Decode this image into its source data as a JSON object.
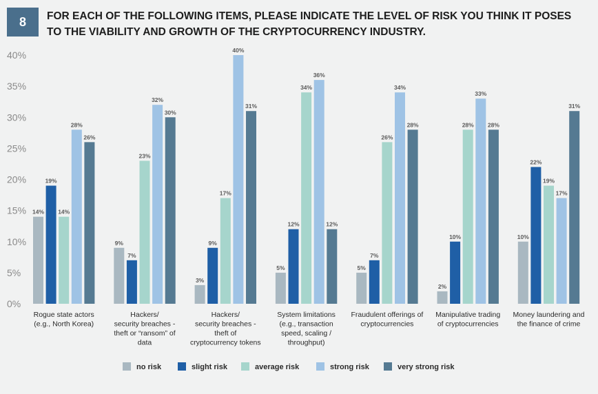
{
  "header": {
    "number": "8",
    "title_lines": [
      "FOR EACH OF THE FOLLOWING ITEMS, PLEASE INDICATE THE LEVEL OF RISK YOU THINK IT POSES",
      "TO THE VIABILITY AND GROWTH OF THE CRYPTOCURRENCY INDUSTRY."
    ]
  },
  "chart_data": {
    "type": "bar",
    "ylim": [
      0,
      40
    ],
    "yticks": [
      "0%",
      "5%",
      "10%",
      "15%",
      "20%",
      "25%",
      "30%",
      "35%",
      "40%"
    ],
    "grid": false,
    "legend_position": "bottom",
    "categories": [
      [
        "Rogue state actors",
        "(e.g., North Korea)"
      ],
      [
        "Hackers/",
        "security breaches -",
        "theft or “ransom” of",
        "data"
      ],
      [
        "Hackers/",
        "security breaches -",
        "theft of",
        "cryptocurrency tokens"
      ],
      [
        "System limitations",
        "(e.g., transaction",
        "speed, scaling /",
        "throughput)"
      ],
      [
        "Fraudulent offerings of",
        "cryptocurrencies"
      ],
      [
        "Manipulative trading",
        "of cryptocurrencies"
      ],
      [
        "Money laundering and",
        "the finance of crime"
      ]
    ],
    "series": [
      {
        "name": "no risk",
        "color": "#a9b8c1",
        "values": [
          14,
          9,
          3,
          5,
          5,
          2,
          10
        ]
      },
      {
        "name": "slight risk",
        "color": "#1f5fa6",
        "values": [
          19,
          7,
          9,
          12,
          7,
          10,
          22
        ]
      },
      {
        "name": "average risk",
        "color": "#a6d5cc",
        "values": [
          14,
          23,
          17,
          34,
          26,
          28,
          19
        ]
      },
      {
        "name": "strong risk",
        "color": "#9fc3e5",
        "values": [
          28,
          32,
          40,
          36,
          34,
          33,
          17
        ]
      },
      {
        "name": "very strong risk",
        "color": "#557a92",
        "values": [
          26,
          30,
          31,
          12,
          28,
          28,
          31
        ]
      }
    ],
    "value_labels": [
      [
        "14%",
        "19%",
        "14%",
        "28%",
        "26%"
      ],
      [
        "9%",
        "7%",
        "23%",
        "32%",
        "30%"
      ],
      [
        "3%",
        "9%",
        "17%",
        "40%",
        "31%"
      ],
      [
        "5%",
        "12%",
        "34%",
        "36%",
        "12%"
      ],
      [
        "5%",
        "7%",
        "26%",
        "34%",
        "28%"
      ],
      [
        "2%",
        "10%",
        "28%",
        "33%",
        "28%"
      ],
      [
        "10%",
        "22%",
        "19%",
        "17%",
        "31%"
      ]
    ]
  }
}
